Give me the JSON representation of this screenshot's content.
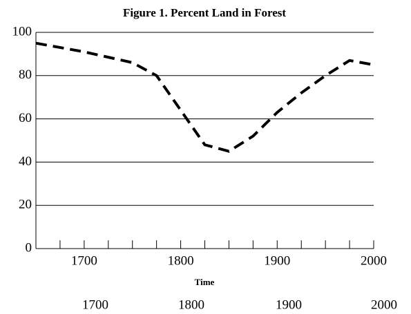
{
  "chart_data": {
    "type": "line",
    "title": "Figure 1.  Percent Land in Forest",
    "x_label": "Time",
    "x": [
      1650,
      1700,
      1750,
      1775,
      1800,
      1825,
      1850,
      1875,
      1900,
      1925,
      1950,
      1975,
      2000
    ],
    "series": [
      {
        "name": "Percent Land in Forest",
        "color": "#000000",
        "values": [
          95,
          91,
          86,
          80,
          64,
          48,
          45,
          52,
          63,
          72,
          80,
          87,
          85
        ]
      }
    ],
    "xlim": [
      1650,
      2000
    ],
    "xticks": [
      1700,
      1800,
      1900,
      2000
    ],
    "x_minor_ticks": [
      1675,
      1700,
      1725,
      1750,
      1775,
      1800,
      1825,
      1850,
      1875,
      1900,
      1925,
      1950,
      1975,
      2000
    ],
    "ylim": [
      0,
      100
    ],
    "yticks": [
      0,
      20,
      40,
      60,
      80,
      100
    ],
    "grid": true,
    "dashed": true,
    "bottom_labels": [
      "1700",
      "1800",
      "1900",
      "2000"
    ]
  }
}
